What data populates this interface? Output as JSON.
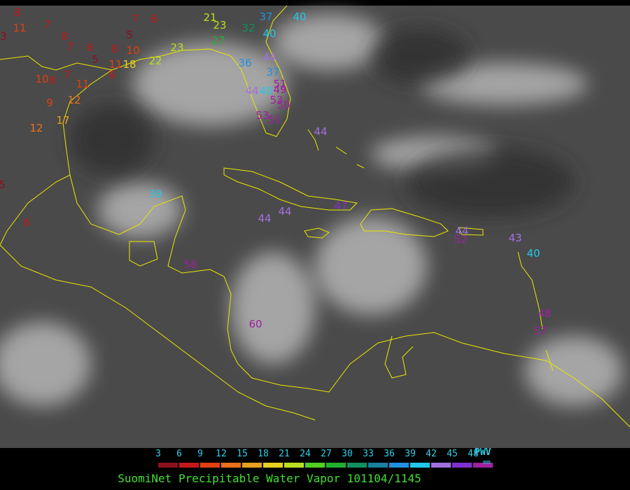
{
  "title": "SuomiNet Precipitable Water Vapor 101104/1145",
  "colorbar": {
    "unit": "PWV",
    "unit_sub": "mm",
    "labels": [
      "3",
      "6",
      "9",
      "12",
      "15",
      "18",
      "21",
      "24",
      "27",
      "30",
      "33",
      "36",
      "39",
      "42",
      "45",
      "48"
    ],
    "colors": [
      "#8b1020",
      "#c41818",
      "#e04010",
      "#e87018",
      "#e8a020",
      "#e8d020",
      "#b8e020",
      "#50d020",
      "#20b030",
      "#109060",
      "#1880a0",
      "#2090e0",
      "#20c8e8",
      "#a070e0",
      "#8030d0",
      "#a020a0"
    ]
  },
  "stations": [
    {
      "value": 8
    },
    {
      "value": 11
    },
    {
      "value": 3
    },
    {
      "value": 7
    },
    {
      "value": 8
    },
    {
      "value": 7
    },
    {
      "value": 6
    },
    {
      "value": 5
    },
    {
      "value": 8
    },
    {
      "value": 5
    },
    {
      "value": 10
    },
    {
      "value": 7
    },
    {
      "value": 6
    },
    {
      "value": 21
    },
    {
      "value": 23
    },
    {
      "value": 27
    },
    {
      "value": 32
    },
    {
      "value": 37
    },
    {
      "value": 40
    },
    {
      "value": 40
    },
    {
      "value": 23
    },
    {
      "value": 22
    },
    {
      "value": 18
    },
    {
      "value": 11
    },
    {
      "value": 10
    },
    {
      "value": 8
    },
    {
      "value": 7
    },
    {
      "value": 11
    },
    {
      "value": 12
    },
    {
      "value": 9
    },
    {
      "value": 17
    },
    {
      "value": 12
    },
    {
      "value": 6
    },
    {
      "value": 5
    },
    {
      "value": 6
    },
    {
      "value": 39
    },
    {
      "value": 44
    },
    {
      "value": 36
    },
    {
      "value": 37
    },
    {
      "value": 51
    },
    {
      "value": 49
    },
    {
      "value": 40
    },
    {
      "value": 44
    },
    {
      "value": 53
    },
    {
      "value": 50
    },
    {
      "value": 53
    },
    {
      "value": 51
    },
    {
      "value": 44
    },
    {
      "value": 44
    },
    {
      "value": 44
    },
    {
      "value": 47
    },
    {
      "value": 52
    },
    {
      "value": 44
    },
    {
      "value": 43
    },
    {
      "value": 40
    },
    {
      "value": 58
    },
    {
      "value": 60
    },
    {
      "value": 48
    },
    {
      "value": 57
    }
  ]
}
